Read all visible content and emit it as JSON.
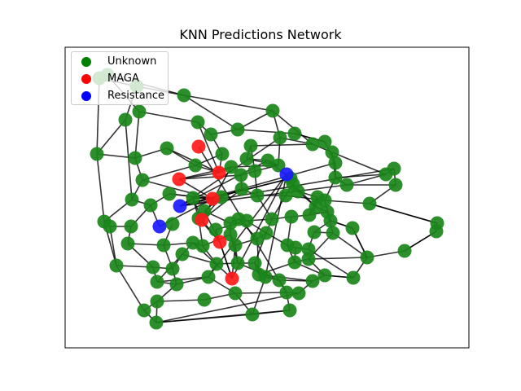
{
  "title": "KNN Predictions Network",
  "legend": [
    {
      "label": "Unknown",
      "color": "#008000"
    },
    {
      "label": "MAGA",
      "color": "#ff0000"
    },
    {
      "label": "Resistance",
      "color": "#0000ff"
    }
  ],
  "colors": {
    "unknown": "#1a861a",
    "maga": "#ff1a1a",
    "resistance": "#1a1aff",
    "edge": "#000000",
    "frame": "#000000"
  }
}
